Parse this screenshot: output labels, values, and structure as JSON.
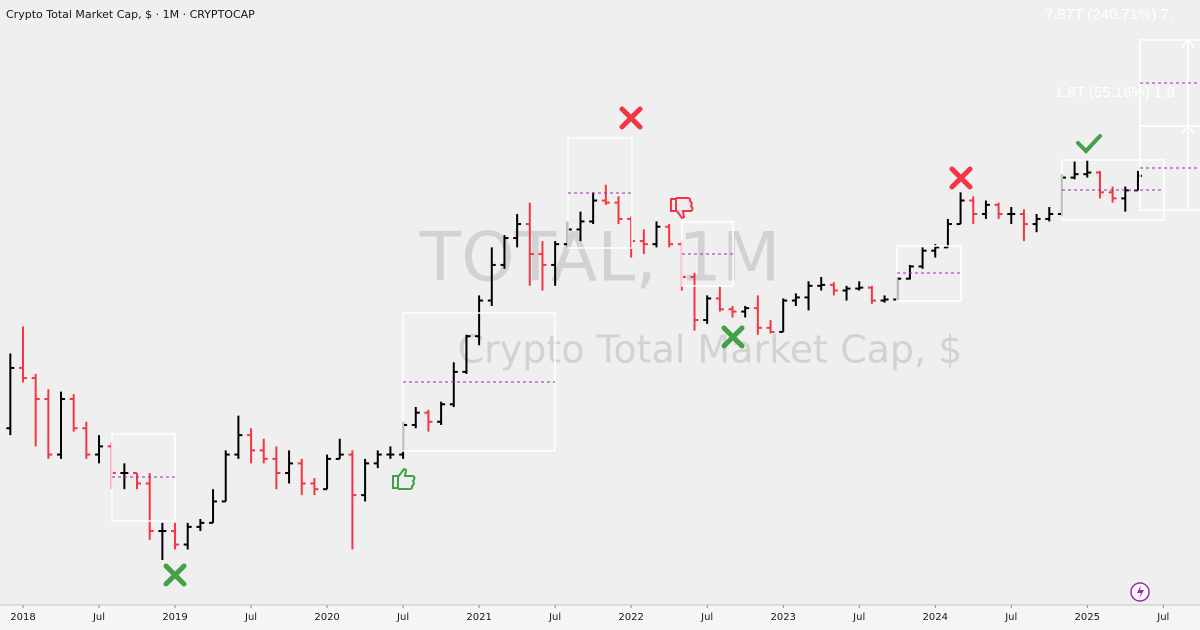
{
  "chart_data": {
    "type": "ohlc",
    "title": "Crypto Total Market Cap, $ · 1M · CRYPTOCAP",
    "watermark": "TOTAL, 1M",
    "watermark_subtitle": "Crypto Total Market Cap, $",
    "annotations": [
      "7.87T (240.71%) 7,",
      "1.8T (55.16%) 1,8"
    ],
    "log_scale": true,
    "up_color": "#000000",
    "down_color": "#f23645",
    "ylim": [
      0.0665,
      16
    ],
    "x": [
      "2017-12",
      "2018-01",
      "2018-02",
      "2018-03",
      "2018-04",
      "2018-05",
      "2018-06",
      "2018-07",
      "2018-08",
      "2018-09",
      "2018-10",
      "2018-11",
      "2018-12",
      "2019-01",
      "2019-02",
      "2019-03",
      "2019-04",
      "2019-05",
      "2019-06",
      "2019-07",
      "2019-08",
      "2019-09",
      "2019-10",
      "2019-11",
      "2019-12",
      "2020-01",
      "2020-02",
      "2020-03",
      "2020-04",
      "2020-05",
      "2020-06",
      "2020-07",
      "2020-08",
      "2020-09",
      "2020-10",
      "2020-11",
      "2020-12",
      "2021-01",
      "2021-02",
      "2021-03",
      "2021-04",
      "2021-05",
      "2021-06",
      "2021-07",
      "2021-08",
      "2021-09",
      "2021-10",
      "2021-11",
      "2021-12",
      "2022-01",
      "2022-02",
      "2022-03",
      "2022-04",
      "2022-05",
      "2022-06",
      "2022-07",
      "2022-08",
      "2022-09",
      "2022-10",
      "2022-11",
      "2022-12",
      "2023-01",
      "2023-02",
      "2023-03",
      "2023-04",
      "2023-05",
      "2023-06",
      "2023-07",
      "2023-08",
      "2023-09",
      "2023-10",
      "2023-11",
      "2023-12",
      "2024-01",
      "2024-02",
      "2024-03",
      "2024-04",
      "2024-05",
      "2024-06",
      "2024-07",
      "2024-08",
      "2024-09",
      "2024-10",
      "2024-11",
      "2024-12",
      "2025-01",
      "2025-02",
      "2025-03",
      "2025-04",
      "2025-05"
    ],
    "open": [
      0.33,
      0.57,
      0.52,
      0.43,
      0.26,
      0.43,
      0.33,
      0.26,
      0.28,
      0.22,
      0.22,
      0.2,
      0.13,
      0.13,
      0.115,
      0.135,
      0.14,
      0.17,
      0.26,
      0.31,
      0.27,
      0.25,
      0.22,
      0.24,
      0.2,
      0.19,
      0.25,
      0.26,
      0.18,
      0.24,
      0.26,
      0.26,
      0.34,
      0.38,
      0.35,
      0.41,
      0.55,
      0.76,
      1.05,
      1.45,
      1.85,
      2.1,
      1.6,
      1.45,
      1.75,
      2.0,
      2.15,
      2.6,
      2.55,
      2.2,
      1.8,
      1.75,
      2.05,
      1.75,
      1.3,
      0.88,
      1.07,
      0.97,
      0.95,
      0.98,
      0.82,
      0.79,
      1.05,
      1.08,
      1.2,
      1.21,
      1.15,
      1.17,
      1.18,
      1.05,
      1.06,
      1.28,
      1.43,
      1.65,
      1.7,
      2.1,
      2.6,
      2.3,
      2.5,
      2.3,
      2.3,
      2.1,
      2.2,
      2.3,
      3.2,
      3.3,
      3.35,
      2.8,
      2.65,
      2.85
    ],
    "high": [
      0.65,
      0.83,
      0.54,
      0.47,
      0.46,
      0.45,
      0.35,
      0.31,
      0.29,
      0.24,
      0.22,
      0.22,
      0.14,
      0.14,
      0.14,
      0.145,
      0.19,
      0.27,
      0.37,
      0.33,
      0.3,
      0.28,
      0.27,
      0.25,
      0.21,
      0.26,
      0.3,
      0.27,
      0.25,
      0.27,
      0.28,
      0.35,
      0.4,
      0.39,
      0.42,
      0.6,
      0.77,
      1.1,
      1.7,
      1.9,
      2.3,
      2.55,
      1.8,
      1.8,
      2.15,
      2.35,
      2.8,
      3.0,
      2.7,
      2.25,
      2.0,
      2.15,
      2.1,
      1.8,
      1.35,
      1.1,
      1.2,
      1.0,
      1.0,
      1.1,
      0.88,
      1.07,
      1.12,
      1.25,
      1.3,
      1.24,
      1.2,
      1.25,
      1.2,
      1.1,
      1.3,
      1.45,
      1.7,
      1.75,
      2.2,
      2.8,
      2.7,
      2.6,
      2.55,
      2.45,
      2.4,
      2.3,
      2.45,
      3.3,
      3.7,
      3.75,
      3.4,
      2.95,
      2.95,
      3.4
    ],
    "low": [
      0.31,
      0.5,
      0.28,
      0.25,
      0.25,
      0.32,
      0.25,
      0.24,
      0.19,
      0.19,
      0.19,
      0.12,
      0.1,
      0.11,
      0.11,
      0.13,
      0.14,
      0.17,
      0.25,
      0.24,
      0.24,
      0.19,
      0.2,
      0.18,
      0.18,
      0.19,
      0.25,
      0.11,
      0.17,
      0.23,
      0.25,
      0.25,
      0.33,
      0.32,
      0.34,
      0.4,
      0.54,
      0.7,
      1.0,
      1.4,
      1.7,
      1.2,
      1.15,
      1.2,
      1.7,
      1.8,
      2.1,
      2.5,
      2.1,
      1.55,
      1.6,
      1.7,
      1.7,
      1.15,
      0.8,
      0.85,
      0.95,
      0.9,
      0.9,
      0.77,
      0.78,
      0.79,
      1.0,
      0.96,
      1.15,
      1.1,
      1.05,
      1.15,
      1.02,
      1.03,
      1.05,
      1.27,
      1.4,
      1.55,
      1.7,
      2.1,
      2.1,
      2.2,
      2.2,
      2.1,
      1.8,
      1.95,
      2.15,
      2.25,
      3.15,
      3.2,
      2.65,
      2.55,
      2.35,
      2.85
    ],
    "close": [
      0.57,
      0.52,
      0.43,
      0.26,
      0.43,
      0.33,
      0.26,
      0.28,
      0.22,
      0.22,
      0.2,
      0.13,
      0.13,
      0.115,
      0.135,
      0.14,
      0.17,
      0.26,
      0.31,
      0.27,
      0.25,
      0.22,
      0.24,
      0.2,
      0.19,
      0.25,
      0.26,
      0.18,
      0.24,
      0.26,
      0.26,
      0.34,
      0.38,
      0.35,
      0.41,
      0.55,
      0.76,
      1.05,
      1.45,
      1.85,
      2.1,
      1.6,
      1.45,
      1.75,
      2.0,
      2.15,
      2.6,
      2.55,
      2.2,
      1.8,
      1.75,
      2.05,
      1.75,
      1.3,
      0.88,
      1.07,
      0.97,
      0.95,
      0.98,
      0.82,
      0.79,
      1.05,
      1.08,
      1.2,
      1.21,
      1.15,
      1.17,
      1.18,
      1.05,
      1.06,
      1.28,
      1.43,
      1.65,
      1.7,
      2.1,
      2.6,
      2.3,
      2.5,
      2.3,
      2.3,
      2.1,
      2.2,
      2.3,
      3.2,
      3.3,
      3.35,
      2.8,
      2.65,
      2.85,
      3.25
    ],
    "xticks": [
      {
        "value": "2018-01",
        "label": "2018"
      },
      {
        "value": "2018-07",
        "label": "Jul"
      },
      {
        "value": "2019-01",
        "label": "2019"
      },
      {
        "value": "2019-07",
        "label": "Jul"
      },
      {
        "value": "2020-01",
        "label": "2020"
      },
      {
        "value": "2020-07",
        "label": "Jul"
      },
      {
        "value": "2021-01",
        "label": "2021"
      },
      {
        "value": "2021-07",
        "label": "Jul"
      },
      {
        "value": "2022-01",
        "label": "2022"
      },
      {
        "value": "2022-07",
        "label": "Jul"
      },
      {
        "value": "2023-01",
        "label": "2023"
      },
      {
        "value": "2023-07",
        "label": "Jul"
      },
      {
        "value": "2024-01",
        "label": "2024"
      },
      {
        "value": "2024-07",
        "label": "Jul"
      },
      {
        "value": "2025-01",
        "label": "2025"
      },
      {
        "value": "2025-07",
        "label": "Jul"
      }
    ]
  }
}
